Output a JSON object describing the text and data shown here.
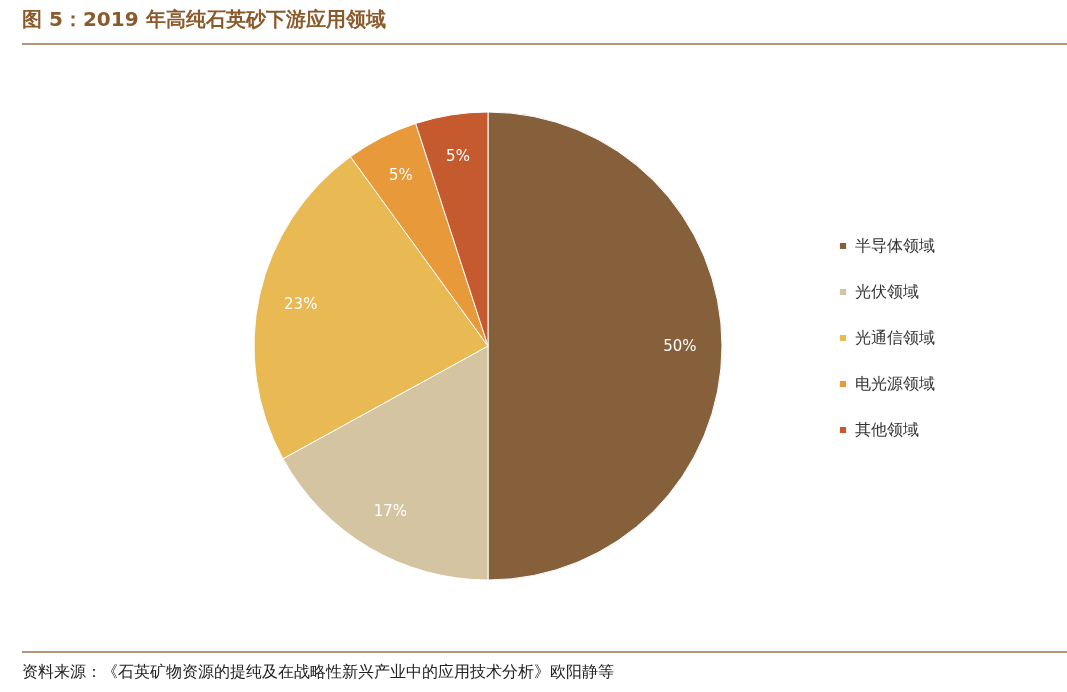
{
  "chart_data": {
    "type": "pie",
    "title": "图 5：2019 年高纯石英砂下游应用领域",
    "categories": [
      "半导体领域",
      "光伏领域",
      "光通信领域",
      "电光源领域",
      "其他领域"
    ],
    "values": [
      50,
      17,
      23,
      5,
      5
    ],
    "value_labels": [
      "50%",
      "17%",
      "23%",
      "5%",
      "5%"
    ],
    "colors": [
      "#86603a",
      "#d5c4a1",
      "#e9b954",
      "#e8993a",
      "#c65a2f"
    ],
    "legend": "right",
    "annotations": [
      "资料来源：《石英矿物资源的提纯及在战略性新兴产业中的应用技术分析》欧阳静等"
    ]
  }
}
